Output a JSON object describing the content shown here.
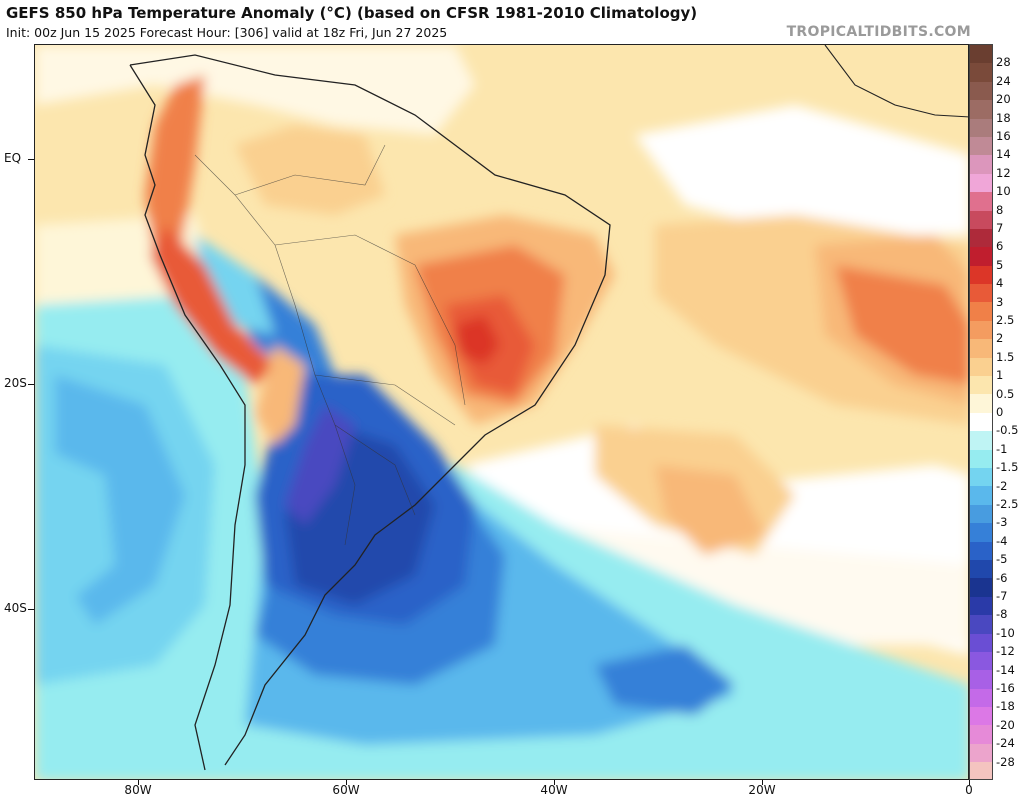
{
  "header": {
    "title": "GEFS 850 hPa Temperature Anomaly (°C) (based on CFSR 1981-2010 Climatology)",
    "subtitle": "Init: 00z Jun 15 2025   Forecast Hour: [306]   valid at 18z Fri, Jun 27 2025",
    "credit": "TROPICALTIDBITS.COM"
  },
  "map": {
    "lat_labels": [
      "EQ",
      "20S",
      "40S"
    ],
    "lon_labels": [
      "80W",
      "60W",
      "40W",
      "20W",
      "0"
    ]
  },
  "colorbar": {
    "labels": [
      "28",
      "24",
      "20",
      "18",
      "16",
      "14",
      "12",
      "10",
      "8",
      "7",
      "6",
      "5",
      "4",
      "3",
      "2.5",
      "2",
      "1.5",
      "1",
      "0.5",
      "0",
      "-0.5",
      "-1",
      "-1.5",
      "-2",
      "-2.5",
      "-3",
      "-4",
      "-5",
      "-6",
      "-7",
      "-8",
      "-10",
      "-12",
      "-14",
      "-16",
      "-18",
      "-20",
      "-24",
      "-28"
    ],
    "colors": [
      "#7a4a3a",
      "#8a5a4e",
      "#9c6c64",
      "#aa7c7c",
      "#c08a96",
      "#dc96bc",
      "#f0a6d8",
      "#e0708e",
      "#c84a5e",
      "#ae2a3a",
      "#c01e2e",
      "#dc3628",
      "#e85a38",
      "#f08048",
      "#f49c60",
      "#f8b878",
      "#fad090",
      "#fce6ae",
      "#fef6d8",
      "#ffffff",
      "#bff4f4",
      "#96ecf0",
      "#74d4f0",
      "#5ab8ec",
      "#489ce0",
      "#3680d8",
      "#2a62c8",
      "#2048ac",
      "#1a3490",
      "#2a3aa8",
      "#4a48c0",
      "#6a4ed4",
      "#8a58e0",
      "#a860e6",
      "#c46ae8",
      "#dc78e6",
      "#e68ad8",
      "#eca4cc",
      "#f4c4c0"
    ],
    "legend_colors": {
      "warm_strong": "#dc3628",
      "warm_moderate": "#f08048",
      "warm_light": "#fce6ae",
      "cool_light": "#96ecf0",
      "cool_moderate": "#3680d8",
      "cool_strong": "#1a3490",
      "cool_extreme": "#6a4ed4",
      "land_border": "#222222"
    }
  }
}
